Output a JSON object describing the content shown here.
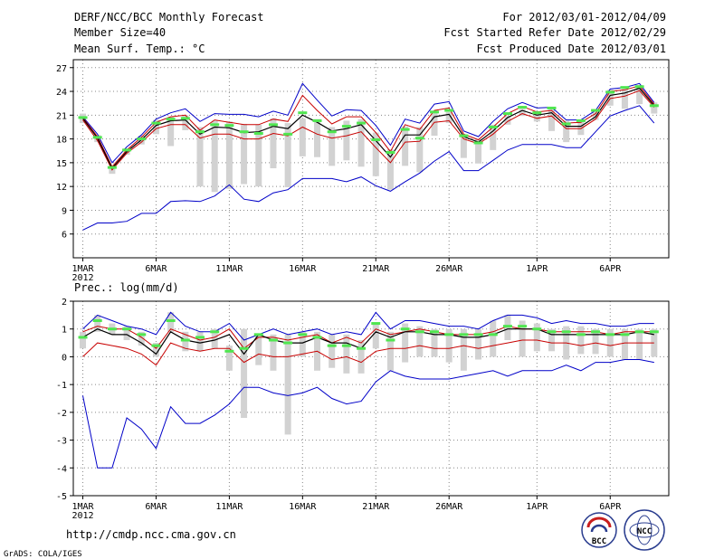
{
  "header": {
    "title": "DERF/NCC/BCC Monthly Forecast",
    "member_size": "Member Size=40",
    "variable": "Mean Surf. Temp.: °C",
    "period": "For 2012/03/01-2012/04/09",
    "started": "Fcst Started Refer Date 2012/02/29",
    "produced": "Fcst Produced Date 2012/03/01"
  },
  "footer": {
    "url": "http://cmdp.ncc.cma.gov.cn",
    "credit": "GrADS: COLA/IGES",
    "logo_left": "BCC",
    "logo_right": "NCC"
  },
  "colors": {
    "max": "#0000c8",
    "min": "#0000c8",
    "upper": "#c80000",
    "mean": "#000000",
    "median": "#50e650",
    "box": "#d2d2d2"
  },
  "chart_data": [
    {
      "type": "line",
      "title": "Mean Surf. Temp.: °C",
      "ylim": [
        3,
        28
      ],
      "yticks": [
        6,
        9,
        12,
        15,
        18,
        21,
        24,
        27
      ],
      "x": [
        1,
        2,
        3,
        4,
        5,
        6,
        7,
        8,
        9,
        10,
        11,
        12,
        13,
        14,
        15,
        16,
        17,
        18,
        19,
        20,
        21,
        22,
        23,
        24,
        25,
        26,
        27,
        28,
        29,
        30,
        31,
        32,
        33,
        34,
        35,
        36,
        37,
        38,
        39,
        40
      ],
      "xticks": [
        {
          "label": "1MAR",
          "sub": "2012",
          "day": 1
        },
        {
          "label": "6MAR",
          "day": 6
        },
        {
          "label": "11MAR",
          "day": 11
        },
        {
          "label": "16MAR",
          "day": 16
        },
        {
          "label": "21MAR",
          "day": 21
        },
        {
          "label": "26MAR",
          "day": 26
        },
        {
          "label": "1APR",
          "day": 32
        },
        {
          "label": "6APR",
          "day": 37
        }
      ],
      "series": [
        {
          "name": "max",
          "values": [
            20.8,
            18.6,
            15.0,
            17.0,
            18.5,
            20.5,
            21.3,
            21.8,
            20.2,
            21.2,
            21.1,
            21.1,
            20.8,
            21.5,
            21.0,
            25.0,
            22.9,
            20.9,
            21.7,
            21.6,
            19.7,
            17.2,
            20.5,
            20.0,
            22.4,
            22.7,
            19.0,
            18.3,
            20.2,
            21.8,
            22.6,
            21.9,
            22.0,
            20.4,
            20.4,
            21.6,
            24.3,
            24.5,
            25.0,
            22.6
          ]
        },
        {
          "name": "upper",
          "values": [
            20.7,
            18.3,
            14.5,
            16.6,
            18.2,
            20.1,
            20.8,
            21.0,
            19.1,
            20.4,
            20.1,
            19.8,
            19.8,
            20.5,
            20.2,
            23.5,
            21.6,
            19.9,
            20.8,
            20.8,
            18.8,
            16.4,
            19.8,
            19.2,
            21.6,
            21.9,
            18.6,
            17.9,
            19.5,
            21.2,
            22.1,
            21.4,
            21.6,
            20.0,
            20.1,
            21.2,
            24.0,
            24.2,
            24.7,
            22.4
          ]
        },
        {
          "name": "mean",
          "values": [
            20.6,
            18.1,
            14.3,
            16.4,
            17.9,
            19.7,
            20.3,
            20.4,
            18.6,
            19.5,
            19.4,
            18.8,
            18.9,
            19.6,
            19.3,
            21.0,
            20.1,
            19.0,
            19.3,
            19.8,
            17.8,
            15.7,
            18.5,
            18.5,
            20.8,
            21.1,
            18.3,
            17.6,
            19.0,
            20.7,
            21.6,
            21.0,
            21.3,
            19.6,
            19.6,
            20.8,
            23.5,
            23.8,
            24.4,
            22.2
          ]
        },
        {
          "name": "lower",
          "values": [
            20.4,
            17.8,
            14.1,
            16.2,
            17.6,
            19.3,
            19.8,
            19.8,
            18.1,
            18.6,
            18.6,
            18.0,
            18.0,
            18.7,
            18.4,
            19.5,
            18.6,
            18.1,
            18.4,
            18.9,
            16.9,
            15.0,
            17.6,
            17.7,
            20.1,
            20.3,
            18.0,
            17.4,
            18.6,
            20.2,
            21.2,
            20.6,
            20.9,
            19.3,
            19.3,
            20.5,
            23.1,
            23.4,
            24.1,
            22.0
          ]
        },
        {
          "name": "min",
          "values": [
            6.5,
            7.4,
            7.4,
            7.6,
            8.6,
            8.6,
            10.1,
            10.2,
            10.1,
            10.8,
            12.2,
            10.4,
            10.1,
            11.2,
            11.6,
            13.0,
            13.0,
            13.0,
            12.6,
            13.2,
            12.1,
            11.4,
            12.6,
            13.7,
            15.2,
            16.4,
            14.0,
            14.0,
            15.3,
            16.6,
            17.3,
            17.3,
            17.3,
            16.9,
            16.9,
            18.9,
            20.9,
            21.6,
            22.2,
            20.0
          ]
        },
        {
          "name": "median",
          "values": [
            20.7,
            18.2,
            14.4,
            16.6,
            18.0,
            20.0,
            20.5,
            20.6,
            18.9,
            19.8,
            19.7,
            18.9,
            18.7,
            19.8,
            18.6,
            21.3,
            20.3,
            18.9,
            19.6,
            20.0,
            17.9,
            16.3,
            19.2,
            18.1,
            21.4,
            21.6,
            18.4,
            17.5,
            19.5,
            21.2,
            22.0,
            21.3,
            21.9,
            19.9,
            20.3,
            21.6,
            23.9,
            24.5,
            24.6,
            22.2
          ]
        },
        {
          "name": "box_top",
          "values": [
            21.2,
            18.5,
            14.6,
            16.8,
            18.4,
            20.4,
            20.8,
            21.0,
            19.5,
            20.3,
            20.2,
            19.9,
            19.8,
            20.6,
            20.0,
            20.6,
            20.5,
            19.5,
            20.3,
            20.5,
            18.8,
            16.7,
            19.6,
            19.5,
            21.5,
            21.4,
            18.6,
            18.0,
            19.8,
            20.9,
            21.8,
            21.5,
            21.7,
            20.3,
            20.3,
            21.4,
            24.2,
            24.3,
            24.8,
            22.6
          ]
        },
        {
          "name": "box_bottom",
          "values": [
            20.0,
            17.6,
            13.6,
            16.0,
            17.3,
            18.6,
            17.1,
            19.1,
            12.0,
            11.3,
            11.7,
            12.3,
            12.0,
            14.3,
            11.9,
            15.8,
            15.7,
            14.6,
            15.3,
            14.5,
            13.3,
            11.6,
            14.6,
            13.8,
            18.4,
            20.0,
            15.6,
            14.9,
            16.6,
            19.8,
            20.9,
            20.2,
            19.0,
            17.6,
            18.5,
            20.4,
            22.2,
            21.8,
            22.4,
            21.2
          ]
        }
      ]
    },
    {
      "type": "line",
      "title": "Prec.: log(mm/d)",
      "ylim": [
        -5,
        2
      ],
      "yticks": [
        -5,
        -4,
        -3,
        -2,
        -1,
        0,
        1,
        2
      ],
      "x": [
        1,
        2,
        3,
        4,
        5,
        6,
        7,
        8,
        9,
        10,
        11,
        12,
        13,
        14,
        15,
        16,
        17,
        18,
        19,
        20,
        21,
        22,
        23,
        24,
        25,
        26,
        27,
        28,
        29,
        30,
        31,
        32,
        33,
        34,
        35,
        36,
        37,
        38,
        39,
        40
      ],
      "xticks": [
        {
          "label": "1MAR",
          "sub": "2012",
          "day": 1
        },
        {
          "label": "6MAR",
          "day": 6
        },
        {
          "label": "11MAR",
          "day": 11
        },
        {
          "label": "16MAR",
          "day": 16
        },
        {
          "label": "21MAR",
          "day": 21
        },
        {
          "label": "26MAR",
          "day": 26
        },
        {
          "label": "1APR",
          "day": 32
        },
        {
          "label": "6APR",
          "day": 37
        }
      ],
      "series": [
        {
          "name": "max",
          "values": [
            1.0,
            1.5,
            1.3,
            1.1,
            1.0,
            0.8,
            1.6,
            1.1,
            0.9,
            0.9,
            1.2,
            0.6,
            0.8,
            1.0,
            0.8,
            0.9,
            1.0,
            0.8,
            0.9,
            0.8,
            1.6,
            1.0,
            1.3,
            1.3,
            1.2,
            1.1,
            1.1,
            1.0,
            1.3,
            1.5,
            1.5,
            1.4,
            1.2,
            1.3,
            1.2,
            1.2,
            1.1,
            1.1,
            1.2,
            1.2
          ]
        },
        {
          "name": "upper",
          "values": [
            0.9,
            1.1,
            1.0,
            1.0,
            0.7,
            0.3,
            1.0,
            0.8,
            0.6,
            0.7,
            1.0,
            0.3,
            0.7,
            0.7,
            0.6,
            0.7,
            0.8,
            0.5,
            0.7,
            0.5,
            1.0,
            0.8,
            0.9,
            1.0,
            0.9,
            0.8,
            0.8,
            0.8,
            0.9,
            1.1,
            1.0,
            1.0,
            0.9,
            0.9,
            0.9,
            0.9,
            0.8,
            0.9,
            0.9,
            0.9
          ]
        },
        {
          "name": "mean",
          "values": [
            0.7,
            1.0,
            0.8,
            0.8,
            0.5,
            0.1,
            0.9,
            0.6,
            0.5,
            0.6,
            0.8,
            0.1,
            0.8,
            0.6,
            0.5,
            0.5,
            0.7,
            0.5,
            0.5,
            0.3,
            0.9,
            0.7,
            0.9,
            0.9,
            0.8,
            0.8,
            0.7,
            0.7,
            0.8,
            1.0,
            1.0,
            1.0,
            0.8,
            0.8,
            0.8,
            0.8,
            0.8,
            0.8,
            0.9,
            0.8
          ]
        },
        {
          "name": "lower",
          "values": [
            0.0,
            0.5,
            0.4,
            0.3,
            0.1,
            -0.3,
            0.5,
            0.3,
            0.2,
            0.3,
            0.3,
            -0.2,
            0.1,
            0.0,
            0.0,
            0.1,
            0.2,
            -0.1,
            0.0,
            -0.2,
            0.2,
            0.3,
            0.3,
            0.4,
            0.3,
            0.3,
            0.4,
            0.3,
            0.4,
            0.5,
            0.6,
            0.6,
            0.5,
            0.5,
            0.4,
            0.5,
            0.4,
            0.5,
            0.5,
            0.5
          ]
        },
        {
          "name": "min",
          "values": [
            -1.4,
            -4.0,
            -4.0,
            -2.2,
            -2.6,
            -3.3,
            -1.8,
            -2.4,
            -2.4,
            -2.1,
            -1.7,
            -1.1,
            -1.1,
            -1.3,
            -1.4,
            -1.3,
            -1.1,
            -1.5,
            -1.7,
            -1.6,
            -0.9,
            -0.5,
            -0.7,
            -0.8,
            -0.8,
            -0.8,
            -0.7,
            -0.6,
            -0.5,
            -0.7,
            -0.5,
            -0.5,
            -0.5,
            -0.3,
            -0.5,
            -0.2,
            -0.2,
            -0.1,
            -0.1,
            -0.2
          ]
        },
        {
          "name": "median",
          "values": [
            0.7,
            1.3,
            1.0,
            1.0,
            0.8,
            0.4,
            1.3,
            0.6,
            0.7,
            0.9,
            0.2,
            0.3,
            0.8,
            0.6,
            0.5,
            0.8,
            0.7,
            0.4,
            0.4,
            0.3,
            1.2,
            0.6,
            1.0,
            0.9,
            0.9,
            0.8,
            0.8,
            0.8,
            0.8,
            1.1,
            1.1,
            1.0,
            0.9,
            0.9,
            0.8,
            0.9,
            0.8,
            0.8,
            0.9,
            0.9
          ]
        },
        {
          "name": "box_top",
          "values": [
            0.9,
            1.5,
            1.2,
            1.1,
            0.9,
            0.5,
            1.6,
            0.9,
            0.9,
            1.0,
            0.4,
            1.0,
            0.8,
            0.8,
            0.8,
            0.9,
            0.9,
            0.8,
            0.8,
            0.6,
            1.2,
            0.9,
            1.2,
            1.1,
            1.0,
            1.0,
            1.0,
            1.0,
            1.3,
            1.5,
            1.3,
            1.2,
            1.0,
            1.1,
            1.1,
            1.0,
            1.0,
            1.0,
            1.0,
            1.0
          ]
        },
        {
          "name": "box_bottom",
          "values": [
            0.3,
            0.9,
            0.8,
            0.6,
            0.4,
            0.0,
            0.9,
            0.2,
            0.2,
            0.3,
            -0.5,
            -2.2,
            -0.3,
            -0.5,
            -2.8,
            0.0,
            -0.5,
            -0.4,
            -0.6,
            -0.6,
            0.3,
            -0.5,
            -0.2,
            0.0,
            0.0,
            -0.2,
            -0.5,
            -0.1,
            0.0,
            0.6,
            0.0,
            0.2,
            0.2,
            -0.1,
            0.1,
            0.1,
            0.0,
            -0.1,
            -0.1,
            0.0
          ]
        }
      ]
    }
  ]
}
